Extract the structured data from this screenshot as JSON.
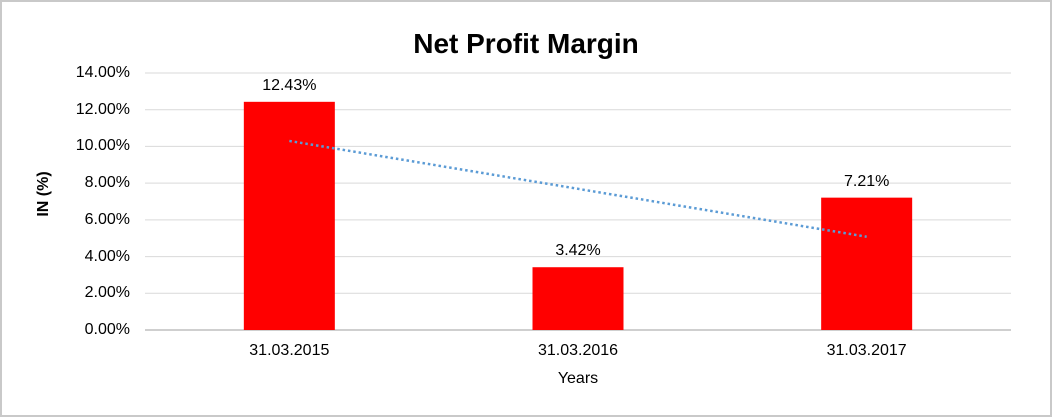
{
  "chart_data": {
    "type": "bar",
    "title": "Net Profit Margin",
    "xlabel": "Years",
    "ylabel": "IN (%)",
    "categories": [
      "31.03.2015",
      "31.03.2016",
      "31.03.2017"
    ],
    "series": [
      {
        "name": "Net Profit Margin",
        "color": "#FF0000",
        "values": [
          12.43,
          3.42,
          7.21
        ],
        "data_labels": [
          "12.43%",
          "3.42%",
          "7.21%"
        ]
      }
    ],
    "ylim": [
      0,
      14
    ],
    "yticks": [
      {
        "value": 0,
        "label": "0.00%"
      },
      {
        "value": 2,
        "label": "2.00%"
      },
      {
        "value": 4,
        "label": "4.00%"
      },
      {
        "value": 6,
        "label": "6.00%"
      },
      {
        "value": 8,
        "label": "8.00%"
      },
      {
        "value": 10,
        "label": "10.00%"
      },
      {
        "value": 12,
        "label": "12.00%"
      },
      {
        "value": 14,
        "label": "14.00%"
      }
    ],
    "grid": "horizontal",
    "legend": "none",
    "trendline": {
      "type": "linear",
      "style": "dotted",
      "color": "#5B9BD5",
      "start_value": 10.3,
      "end_value": 5.08
    }
  },
  "colors": {
    "bar": "#FF0000",
    "trendline": "#5B9BD5",
    "gridline": "#D9D9D9",
    "axis_line": "#BFBFBF",
    "text": "#000000",
    "chart_border": "#C9C9C9",
    "background": "#FFFFFF"
  }
}
